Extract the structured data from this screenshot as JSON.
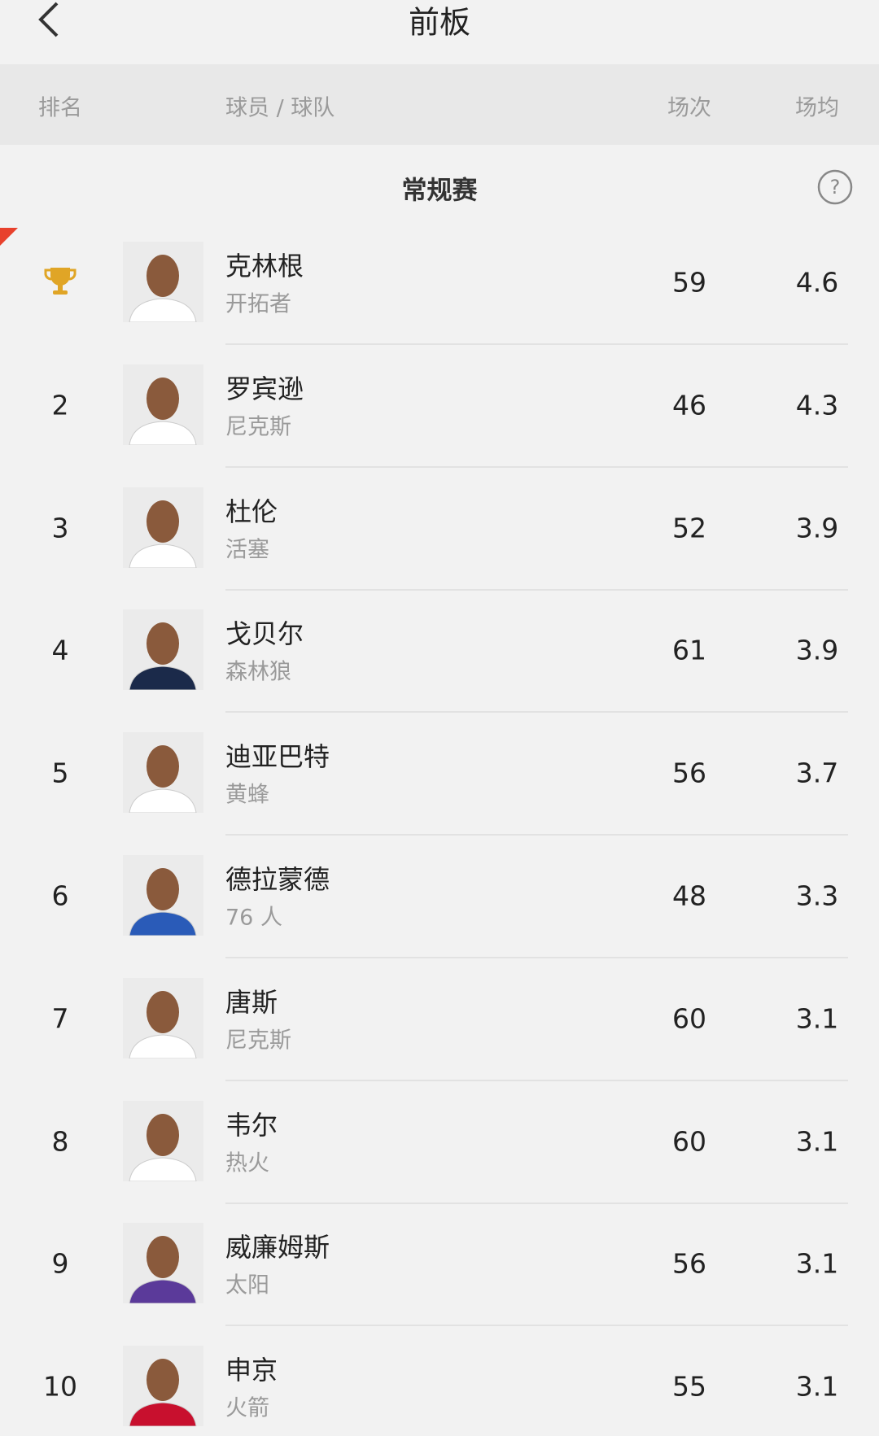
{
  "title": "前板",
  "columns": [
    "排名",
    "球员 / 球队",
    "场次",
    "场均"
  ],
  "section": "常规赛",
  "rows": [
    {
      "name": "克林根",
      "team": "开拓者",
      "games": 59,
      "avg": 4.6
    },
    {
      "rank": 2,
      "name": "罗宾逊",
      "team": "尼克斯",
      "games": 46,
      "avg": 4.3
    },
    {
      "rank": 3,
      "name": "杜伦",
      "team": "活塞",
      "games": 52,
      "avg": 3.9
    },
    {
      "rank": 4,
      "name": "戈贝尔",
      "team": "森林狼",
      "games": 61,
      "avg": 3.9
    },
    {
      "rank": 5,
      "name": "迪亚巴特",
      "team": "黄蜂",
      "games": 56,
      "avg": 3.7
    },
    {
      "rank": 6,
      "name": "德拉蒙德",
      "team": "76 人",
      "games": 48,
      "avg": 3.3
    },
    {
      "rank": 7,
      "name": "唐斯",
      "team": "尼克斯",
      "games": 60,
      "avg": 3.1
    },
    {
      "rank": 8,
      "name": "韦尔",
      "team": "热火",
      "games": 60,
      "avg": 3.1
    },
    {
      "rank": 9,
      "name": "威廉姆斯",
      "team": "太阳",
      "games": 56,
      "avg": 3.1
    },
    {
      "rank": 10,
      "name": "申京",
      "team": "火箭",
      "games": 55,
      "avg": 3.1
    }
  ]
}
